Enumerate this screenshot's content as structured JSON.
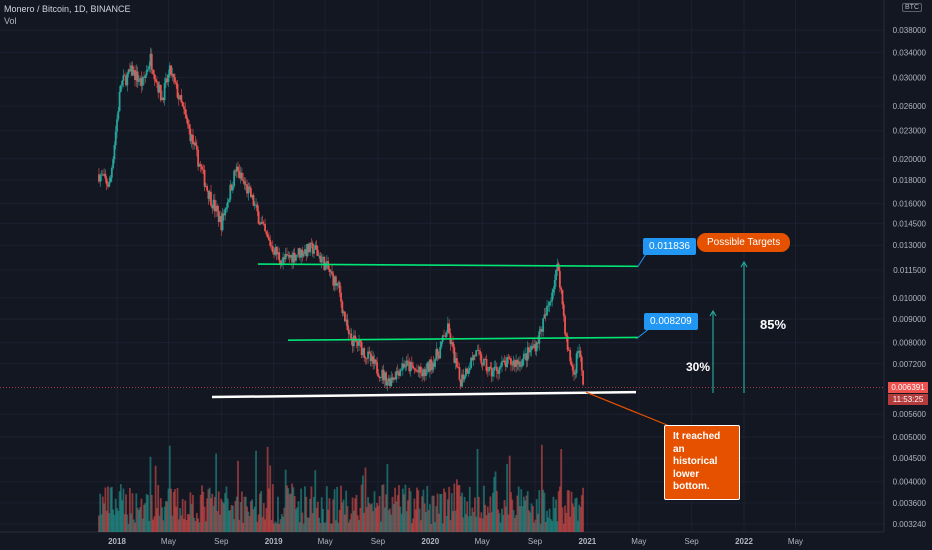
{
  "legend": {
    "title": "Monero / Bitcoin, 1D, BINANCE",
    "volume_label": "Vol"
  },
  "axis": {
    "currency": "BTC",
    "last_price": "0.006391",
    "countdown": "11:53:25"
  },
  "annotations": {
    "level_upper": "0.011836",
    "level_middle": "0.008209",
    "targets_label": "Possible Targets",
    "pct_small": "30%",
    "pct_large": "85%",
    "bottom_note": "It reached an historical lower bottom."
  },
  "colors": {
    "background": "#131722",
    "up": "#26a69a",
    "down": "#ef5350",
    "level_line": "#00e676",
    "support_line": "#ffffff",
    "label_blue": "#2196f3",
    "label_orange": "#e65100",
    "arrow": "#26a69a"
  },
  "chart_data": {
    "type": "candlestick",
    "symbol": "Monero / Bitcoin",
    "interval": "1D",
    "exchange": "BINANCE",
    "y_scale": "log",
    "ylim": [
      0.00324,
      0.042
    ],
    "y_ticks": [
      "0.038000",
      "0.034000",
      "0.030000",
      "0.026000",
      "0.023000",
      "0.020000",
      "0.018000",
      "0.016000",
      "0.014500",
      "0.013000",
      "0.011500",
      "0.010000",
      "0.009000",
      "0.008000",
      "0.007200",
      "0.005600",
      "0.005000",
      "0.004500",
      "0.004000",
      "0.003600",
      "0.003240"
    ],
    "x_ticks": [
      "2018",
      "May",
      "Sep",
      "2019",
      "May",
      "Sep",
      "2020",
      "May",
      "Sep",
      "2021",
      "May",
      "Sep",
      "2022",
      "May"
    ],
    "price_path": [
      {
        "date": "2017-11-20",
        "close": 0.0185
      },
      {
        "date": "2017-12-15",
        "close": 0.0175
      },
      {
        "date": "2018-01-10",
        "close": 0.029
      },
      {
        "date": "2018-02-05",
        "close": 0.031
      },
      {
        "date": "2018-03-01",
        "close": 0.029
      },
      {
        "date": "2018-03-20",
        "close": 0.033
      },
      {
        "date": "2018-04-15",
        "close": 0.027
      },
      {
        "date": "2018-05-05",
        "close": 0.031
      },
      {
        "date": "2018-06-01",
        "close": 0.026
      },
      {
        "date": "2018-07-01",
        "close": 0.021
      },
      {
        "date": "2018-08-01",
        "close": 0.017
      },
      {
        "date": "2018-09-01",
        "close": 0.0145
      },
      {
        "date": "2018-10-05",
        "close": 0.019
      },
      {
        "date": "2018-11-10",
        "close": 0.0165
      },
      {
        "date": "2018-12-15",
        "close": 0.0135
      },
      {
        "date": "2019-01-20",
        "close": 0.012
      },
      {
        "date": "2019-02-25",
        "close": 0.0125
      },
      {
        "date": "2019-04-05",
        "close": 0.0128
      },
      {
        "date": "2019-05-01",
        "close": 0.0118
      },
      {
        "date": "2019-06-01",
        "close": 0.0105
      },
      {
        "date": "2019-06-25",
        "close": 0.0082
      },
      {
        "date": "2019-07-20",
        "close": 0.0079
      },
      {
        "date": "2019-08-20",
        "close": 0.0072
      },
      {
        "date": "2019-09-25",
        "close": 0.0066
      },
      {
        "date": "2019-11-01",
        "close": 0.0072
      },
      {
        "date": "2019-12-15",
        "close": 0.0068
      },
      {
        "date": "2020-01-20",
        "close": 0.0076
      },
      {
        "date": "2020-02-10",
        "close": 0.0086
      },
      {
        "date": "2020-03-10",
        "close": 0.0066
      },
      {
        "date": "2020-04-15",
        "close": 0.0076
      },
      {
        "date": "2020-05-20",
        "close": 0.0069
      },
      {
        "date": "2020-06-25",
        "close": 0.0072
      },
      {
        "date": "2020-08-01",
        "close": 0.0073
      },
      {
        "date": "2020-09-05",
        "close": 0.008
      },
      {
        "date": "2020-10-01",
        "close": 0.0095
      },
      {
        "date": "2020-10-25",
        "close": 0.0118
      },
      {
        "date": "2020-11-15",
        "close": 0.0078
      },
      {
        "date": "2020-12-01",
        "close": 0.0068
      },
      {
        "date": "2020-12-12",
        "close": 0.008
      },
      {
        "date": "2020-12-22",
        "close": 0.006391
      }
    ],
    "levels": [
      {
        "value": 0.011836,
        "color": "green"
      },
      {
        "value": 0.008209,
        "color": "green"
      },
      {
        "value": 0.0062,
        "color": "white",
        "role": "support"
      }
    ],
    "targets_pct": [
      30,
      85
    ],
    "last_price": 0.006391
  }
}
